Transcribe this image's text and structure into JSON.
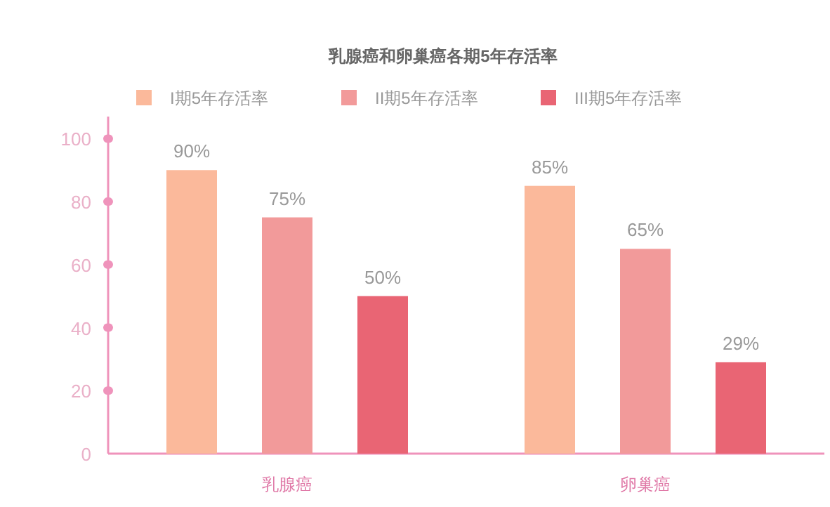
{
  "chart_data": {
    "type": "bar",
    "title": "乳腺癌和卵巢癌各期5年存活率",
    "categories": [
      "乳腺癌",
      "卵巢癌"
    ],
    "series": [
      {
        "name": "I期5年存活率",
        "color": "#fbb99b",
        "values": [
          90,
          85
        ],
        "value_labels": [
          "90%",
          "85%"
        ]
      },
      {
        "name": "II期5年存活率",
        "color": "#f29a9a",
        "values": [
          75,
          65
        ],
        "value_labels": [
          "75%",
          "65%"
        ]
      },
      {
        "name": "III期5年存活率",
        "color": "#e96574",
        "values": [
          50,
          29
        ],
        "value_labels": [
          "50%",
          "29%"
        ]
      }
    ],
    "ylim": [
      0,
      107
    ],
    "yticks": [
      0,
      20,
      40,
      60,
      80,
      100
    ],
    "legend": "top"
  }
}
